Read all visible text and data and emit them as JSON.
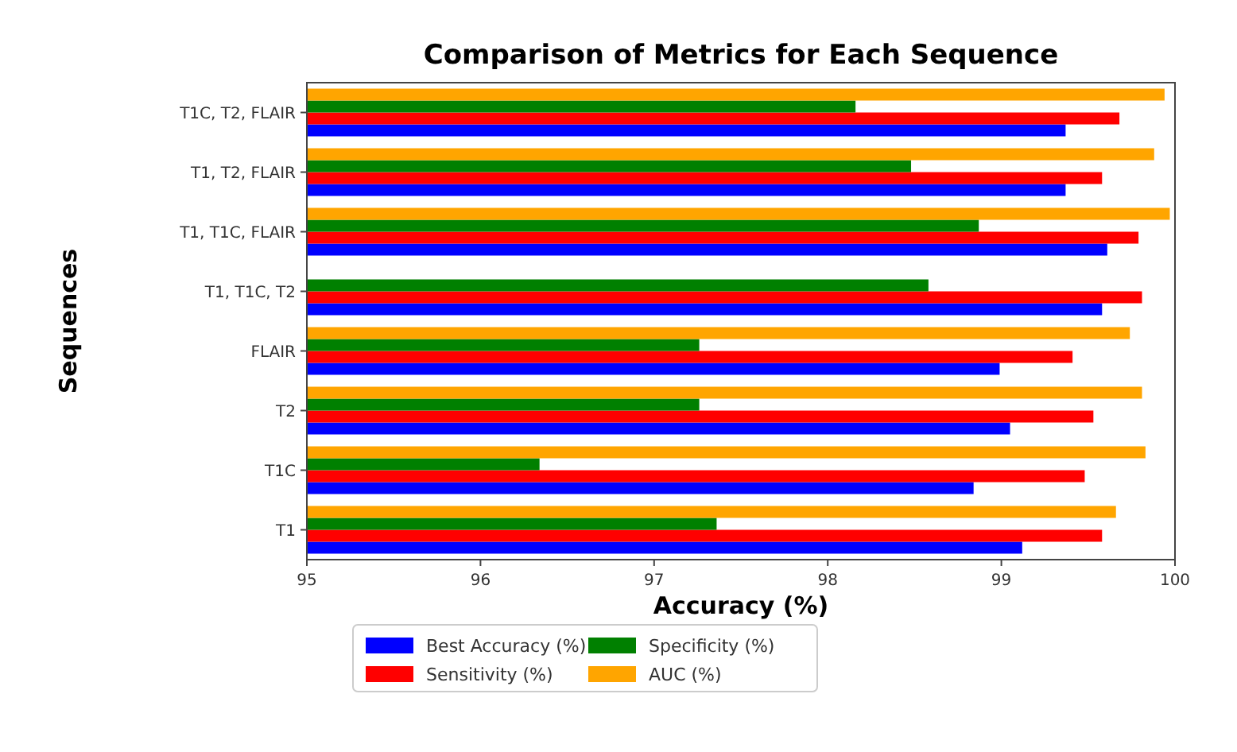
{
  "chart_data": {
    "type": "bar",
    "orientation": "horizontal",
    "title": "Comparison of Metrics for Each Sequence",
    "xlabel": "Accuracy (%)",
    "ylabel": "Sequences",
    "categories": [
      "T1C, T2, FLAIR",
      "T1, T2, FLAIR",
      "T1, T1C, FLAIR",
      "T1, T1C, T2",
      "FLAIR",
      "T2",
      "T1C",
      "T1"
    ],
    "series": [
      {
        "name": "Best Accuracy (%)",
        "color": "#0000ff",
        "values": [
          99.37,
          99.37,
          99.61,
          99.58,
          98.99,
          99.05,
          98.84,
          99.12
        ]
      },
      {
        "name": "Sensitivity (%)",
        "color": "#ff0000",
        "values": [
          99.68,
          99.58,
          99.79,
          99.81,
          99.41,
          99.53,
          99.48,
          99.58
        ]
      },
      {
        "name": "Specificity (%)",
        "color": "#008000",
        "values": [
          98.16,
          98.48,
          98.87,
          98.58,
          97.26,
          97.26,
          96.34,
          97.36
        ]
      },
      {
        "name": "AUC (%)",
        "color": "#ffa500",
        "values": [
          99.94,
          99.88,
          99.97,
          null,
          99.74,
          99.81,
          99.83,
          99.66
        ]
      }
    ],
    "xlim": [
      95,
      100
    ],
    "xticks": [
      95,
      96,
      97,
      98,
      99,
      100
    ],
    "grid": false,
    "legend": "bottom"
  }
}
